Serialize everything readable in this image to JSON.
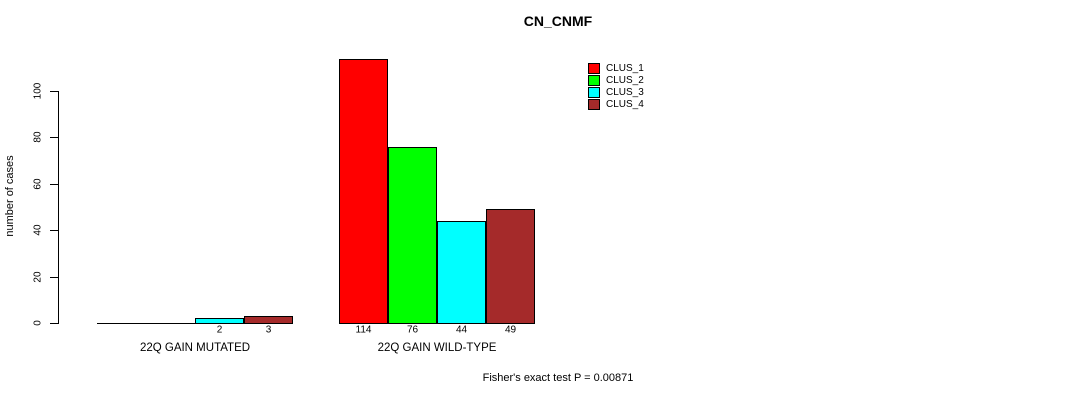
{
  "chart_data": {
    "type": "bar",
    "title": "CN_CNMF",
    "ylabel": "number of cases",
    "xlabel": "",
    "yticks": [
      0,
      20,
      40,
      60,
      80,
      100
    ],
    "ylim": [
      0,
      115
    ],
    "grid": false,
    "legend_position": "top-right",
    "categories": [
      "22Q GAIN MUTATED",
      "22Q GAIN WILD-TYPE"
    ],
    "series": [
      {
        "name": "CLUS_1",
        "color": "#ff0000",
        "values": [
          0,
          114
        ]
      },
      {
        "name": "CLUS_2",
        "color": "#00ff00",
        "values": [
          0,
          76
        ]
      },
      {
        "name": "CLUS_3",
        "color": "#00ffff",
        "values": [
          2,
          44
        ]
      },
      {
        "name": "CLUS_4",
        "color": "#a52a2a",
        "values": [
          3,
          49
        ]
      }
    ],
    "bar_value_labels_visible": "only nonzero bars are labeled",
    "caption": "Fisher's exact test P = 0.00871",
    "axis_color": "#000000",
    "text_color": "#000000",
    "background_color": "#ffffff"
  }
}
